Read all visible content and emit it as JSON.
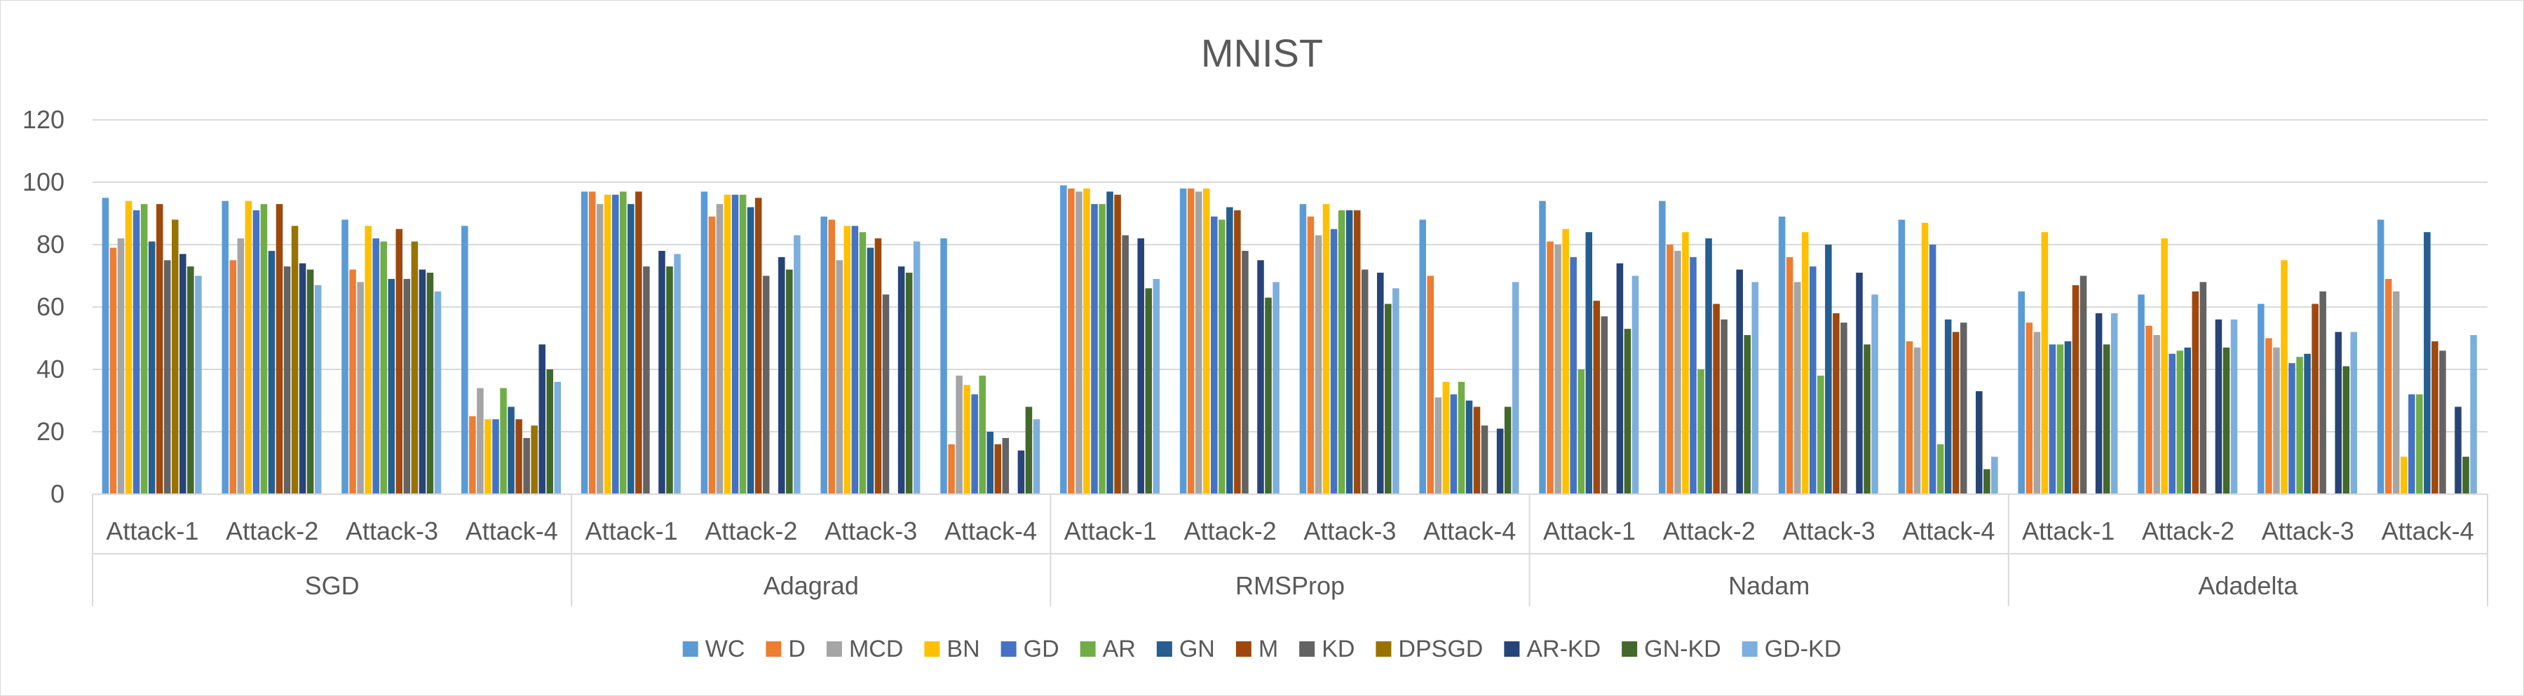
{
  "chart_data": {
    "type": "bar",
    "title": "MNIST",
    "ylim": [
      0,
      120
    ],
    "yticks": [
      0,
      20,
      40,
      60,
      80,
      100,
      120
    ],
    "grid": true,
    "legend_position": "bottom",
    "groups": [
      "SGD",
      "Adagrad",
      "RMSProp",
      "Nadam",
      "Adadelta"
    ],
    "categories": [
      "Attack-1",
      "Attack-2",
      "Attack-3",
      "Attack-4"
    ],
    "series": [
      {
        "name": "WC",
        "color": "#5B9BD5"
      },
      {
        "name": "D",
        "color": "#ED7D31"
      },
      {
        "name": "MCD",
        "color": "#A5A5A5"
      },
      {
        "name": "BN",
        "color": "#FFC000"
      },
      {
        "name": "GD",
        "color": "#4472C4"
      },
      {
        "name": "AR",
        "color": "#70AD47"
      },
      {
        "name": "GN",
        "color": "#255E91"
      },
      {
        "name": "M",
        "color": "#9E480E"
      },
      {
        "name": "KD",
        "color": "#636363"
      },
      {
        "name": "DPSGD",
        "color": "#997300"
      },
      {
        "name": "AR-KD",
        "color": "#264478"
      },
      {
        "name": "GN-KD",
        "color": "#43682B"
      },
      {
        "name": "GD-KD",
        "color": "#7CAFDD"
      }
    ],
    "values": {
      "SGD": [
        [
          95,
          79,
          82,
          94,
          91,
          93,
          81,
          93,
          75,
          88,
          77,
          73,
          70
        ],
        [
          94,
          75,
          82,
          94,
          91,
          93,
          78,
          93,
          73,
          86,
          74,
          72,
          67
        ],
        [
          88,
          72,
          68,
          86,
          82,
          81,
          69,
          85,
          69,
          81,
          72,
          71,
          65
        ],
        [
          86,
          25,
          34,
          24,
          24,
          34,
          28,
          24,
          18,
          22,
          48,
          40,
          36
        ]
      ],
      "Adagrad": [
        [
          97,
          97,
          93,
          96,
          96,
          97,
          93,
          97,
          73,
          0,
          78,
          73,
          77
        ],
        [
          97,
          89,
          93,
          96,
          96,
          96,
          92,
          95,
          70,
          0,
          76,
          72,
          83
        ],
        [
          89,
          88,
          75,
          86,
          86,
          84,
          79,
          82,
          64,
          0,
          73,
          71,
          81
        ],
        [
          82,
          16,
          38,
          35,
          32,
          38,
          20,
          16,
          18,
          0,
          14,
          28,
          24
        ]
      ],
      "RMSProp": [
        [
          99,
          98,
          97,
          98,
          93,
          93,
          97,
          96,
          83,
          0,
          82,
          66,
          69
        ],
        [
          98,
          98,
          97,
          98,
          89,
          88,
          92,
          91,
          78,
          0,
          75,
          63,
          68
        ],
        [
          93,
          89,
          83,
          93,
          85,
          91,
          91,
          91,
          72,
          0,
          71,
          61,
          66
        ],
        [
          88,
          70,
          31,
          36,
          32,
          36,
          30,
          28,
          22,
          0,
          21,
          28,
          68
        ]
      ],
      "Nadam": [
        [
          94,
          81,
          80,
          85,
          76,
          40,
          84,
          62,
          57,
          0,
          74,
          53,
          70
        ],
        [
          94,
          80,
          78,
          84,
          76,
          40,
          82,
          61,
          56,
          0,
          72,
          51,
          68
        ],
        [
          89,
          76,
          68,
          84,
          73,
          38,
          80,
          58,
          55,
          0,
          71,
          48,
          64
        ],
        [
          88,
          49,
          47,
          87,
          80,
          16,
          56,
          52,
          55,
          0,
          33,
          8,
          12
        ]
      ],
      "Adadelta": [
        [
          65,
          55,
          52,
          84,
          48,
          48,
          49,
          67,
          70,
          0,
          58,
          48,
          58
        ],
        [
          64,
          54,
          51,
          82,
          45,
          46,
          47,
          65,
          68,
          0,
          56,
          47,
          56
        ],
        [
          61,
          50,
          47,
          75,
          42,
          44,
          45,
          61,
          65,
          0,
          52,
          41,
          52
        ],
        [
          88,
          69,
          65,
          12,
          32,
          32,
          84,
          49,
          46,
          0,
          28,
          12,
          51
        ]
      ]
    }
  }
}
